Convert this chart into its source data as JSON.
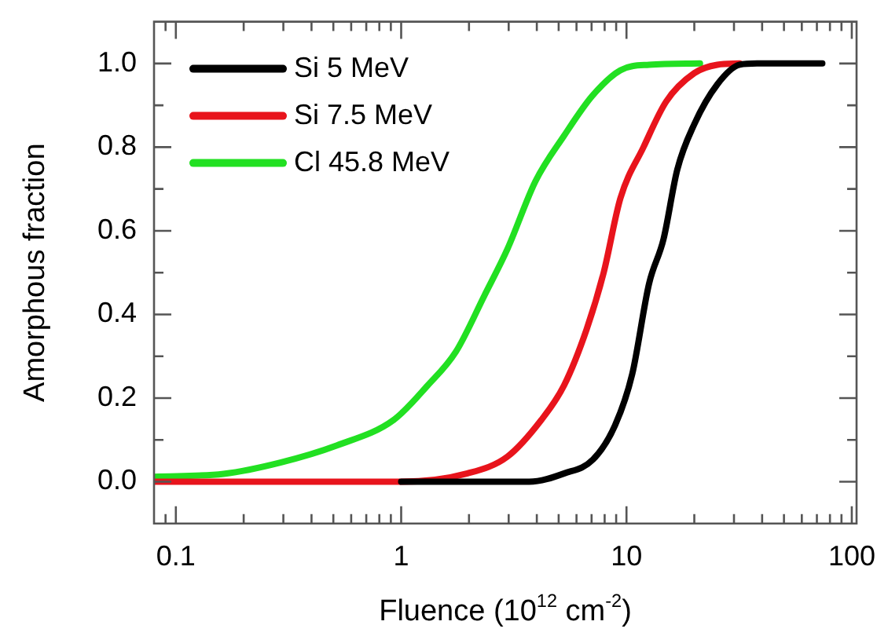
{
  "chart_data": {
    "type": "line",
    "xlabel": "Fluence (10$^{12}$ cm$^{-2}$)",
    "ylabel": "Amorphous fraction",
    "log": "x",
    "xlim": [
      0.08,
      105
    ],
    "ylim": [
      -0.1,
      1.1
    ],
    "xticks": [
      {
        "value": 0.09,
        "label": null
      },
      0.1,
      {
        "value": 0.2,
        "label": null
      },
      {
        "value": 0.3,
        "label": null
      },
      {
        "value": 0.4,
        "label": null
      },
      {
        "value": 0.5,
        "label": null
      },
      {
        "value": 0.6,
        "label": null
      },
      {
        "value": 0.7,
        "label": null
      },
      {
        "value": 0.8,
        "label": null
      },
      {
        "value": 0.9,
        "label": null
      },
      1,
      {
        "value": 2,
        "label": null
      },
      {
        "value": 3,
        "label": null
      },
      {
        "value": 4,
        "label": null
      },
      {
        "value": 5,
        "label": null
      },
      {
        "value": 6,
        "label": null
      },
      {
        "value": 7,
        "label": null
      },
      {
        "value": 8,
        "label": null
      },
      {
        "value": 9,
        "label": null
      },
      10,
      {
        "value": 20,
        "label": null
      },
      {
        "value": 30,
        "label": null
      },
      {
        "value": 40,
        "label": null
      },
      {
        "value": 50,
        "label": null
      },
      {
        "value": 60,
        "label": null
      },
      {
        "value": 70,
        "label": null
      },
      {
        "value": 80,
        "label": null
      },
      {
        "value": 90,
        "label": null
      },
      100
    ],
    "yticks": [
      {
        "value": 0.0,
        "label": "0.0"
      },
      {
        "value": 0.1,
        "label": null
      },
      {
        "value": 0.2,
        "label": "0.2"
      },
      {
        "value": 0.3,
        "label": null
      },
      {
        "value": 0.4,
        "label": "0.4"
      },
      {
        "value": 0.5,
        "label": null
      },
      {
        "value": 0.6,
        "label": "0.6"
      },
      {
        "value": 0.7,
        "label": null
      },
      {
        "value": 0.8,
        "label": "0.8"
      },
      {
        "value": 0.9,
        "label": null
      },
      {
        "value": 1.0,
        "label": "1.0"
      }
    ],
    "grid": false,
    "legend": "top left",
    "marker": "none",
    "line_style": "solid",
    "series": [
      {
        "name": "Si 5 MeV",
        "color": "#000000",
        "x": [
          1,
          3.7,
          5.3,
          7.1,
          8.9,
          10.6,
          12.6,
          14.6,
          16.8,
          20,
          25.3,
          31.8,
          38,
          74
        ],
        "values": [
          0,
          0,
          0.02,
          0.053,
          0.135,
          0.257,
          0.474,
          0.58,
          0.746,
          0.855,
          0.95,
          0.997,
          1,
          1
        ]
      },
      {
        "name": "Si 7.5 MeV",
        "color": "#e8141c",
        "x": [
          0.08,
          1,
          1.97,
          2.96,
          4.19,
          5.28,
          6.66,
          7.92,
          9.4,
          11.9,
          15,
          20,
          25.3,
          31.8
        ],
        "values": [
          0,
          0,
          0.02,
          0.06,
          0.148,
          0.23,
          0.365,
          0.5,
          0.678,
          0.8,
          0.909,
          0.977,
          0.997,
          1
        ]
      },
      {
        "name": "Cl 45.8 MeV",
        "color": "#22e022",
        "x": [
          0.08,
          0.163,
          0.291,
          0.519,
          0.927,
          1.31,
          1.75,
          2.35,
          2.96,
          3.95,
          5.28,
          7.06,
          9.4,
          12.6,
          21.2
        ],
        "values": [
          0.012,
          0.019,
          0.046,
          0.087,
          0.148,
          0.23,
          0.311,
          0.447,
          0.556,
          0.719,
          0.827,
          0.923,
          0.984,
          0.997,
          1
        ]
      }
    ]
  }
}
